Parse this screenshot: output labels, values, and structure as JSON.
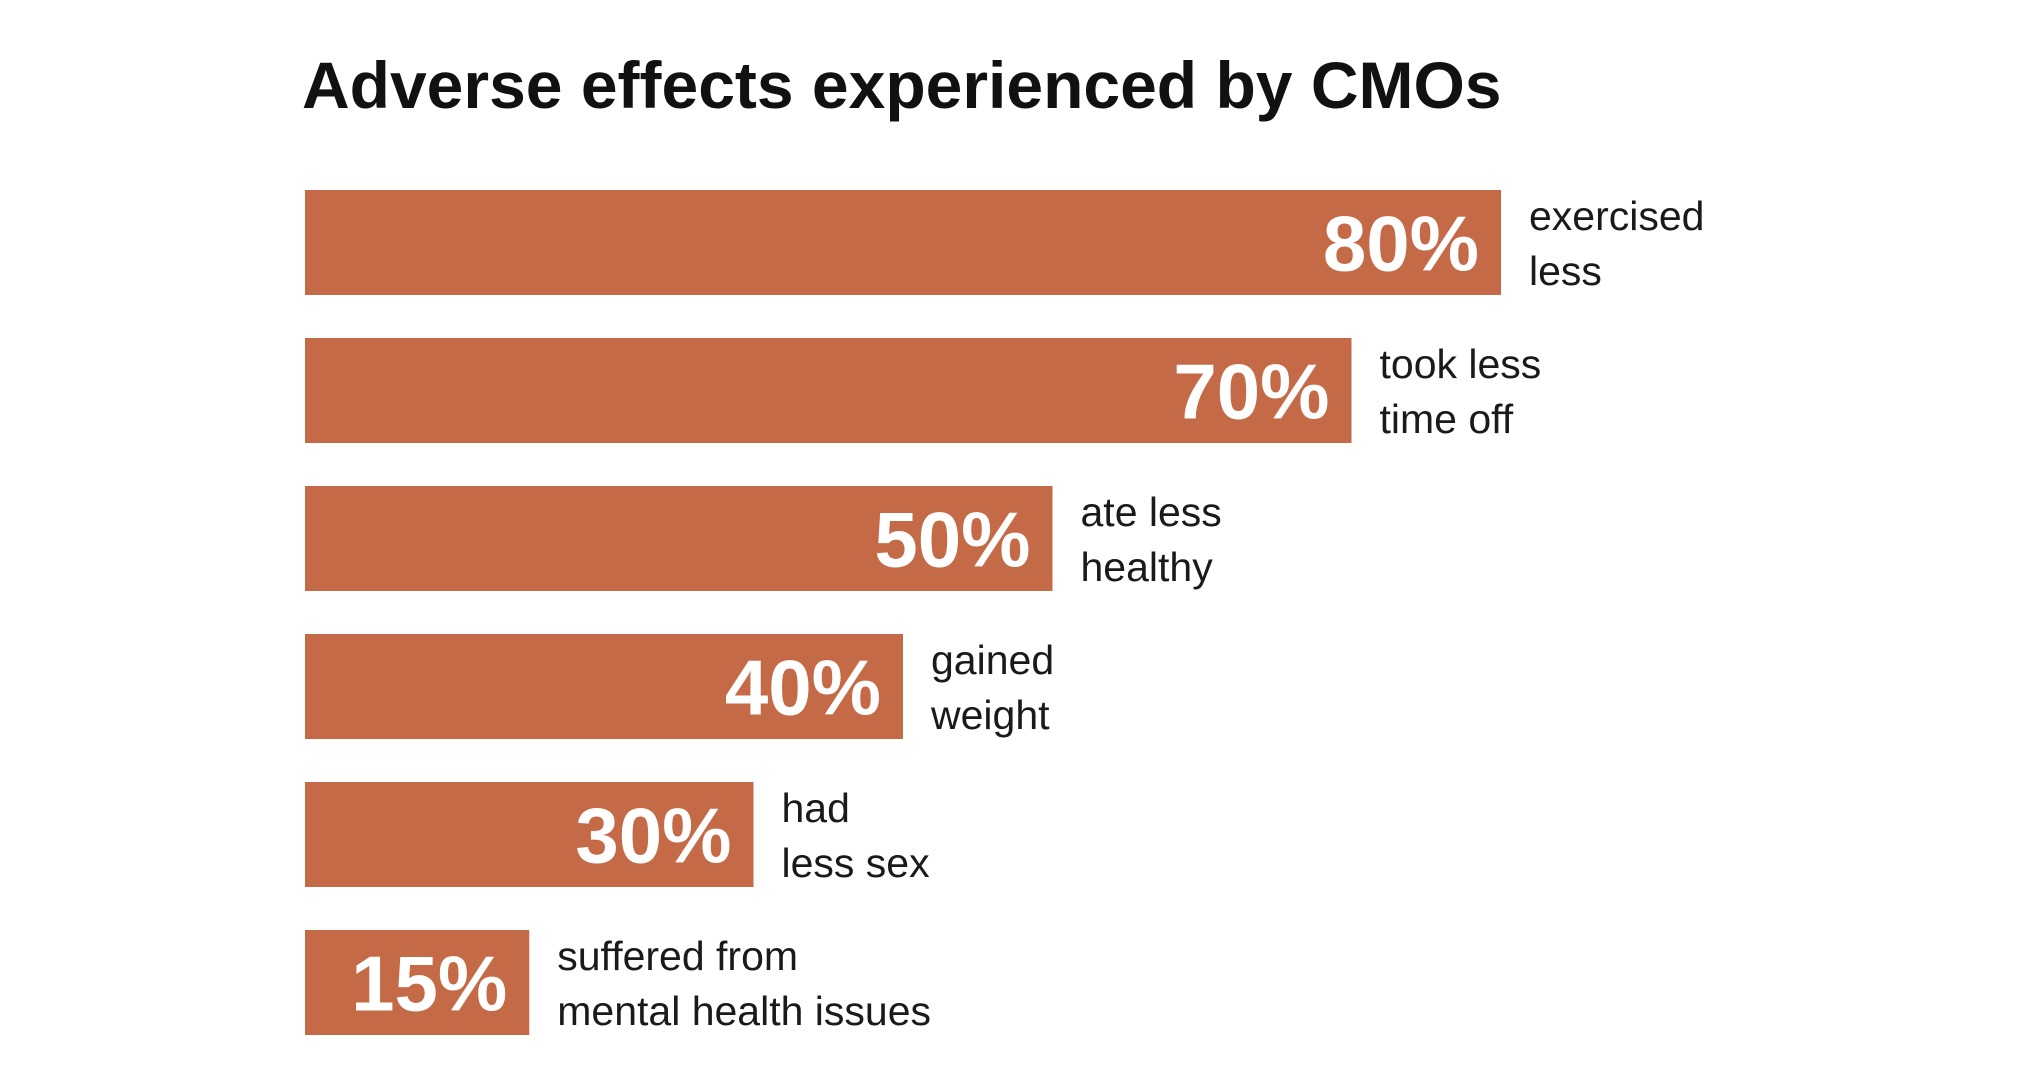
{
  "chart_data": {
    "type": "bar",
    "orientation": "horizontal",
    "title": "Adverse effects experienced by CMOs",
    "categories": [
      [
        "exercised",
        "less"
      ],
      [
        "took less",
        "time off"
      ],
      [
        "ate less",
        "healthy"
      ],
      [
        "gained",
        "weight"
      ],
      [
        "had",
        "less sex"
      ],
      [
        "suffered from",
        "mental health issues"
      ]
    ],
    "values": [
      80,
      70,
      50,
      40,
      30,
      15
    ],
    "value_labels": [
      "80%",
      "70%",
      "50%",
      "40%",
      "30%",
      "15%"
    ],
    "unit": "%",
    "xlim": [
      0,
      100
    ],
    "grid": false,
    "legend": "none",
    "colors": {
      "bar": "#C56A47",
      "value_text": "#ffffff",
      "label_text": "#1a1a1a",
      "title_text": "#111111"
    }
  }
}
